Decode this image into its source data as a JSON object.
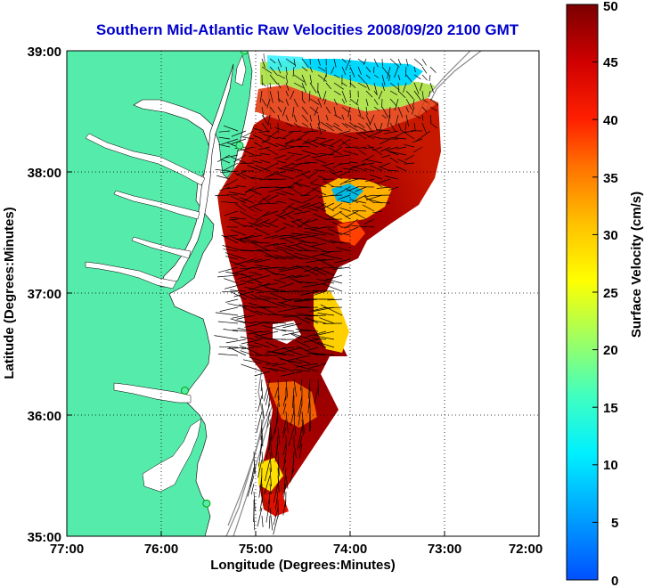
{
  "title": "Southern Mid-Atlantic Raw Velocities 2008/09/20 2100 GMT",
  "xlabel": "Longitude (Degrees:Minutes)",
  "ylabel": "Latitude (Degrees:Minutes)",
  "x_ticks": [
    "77:00",
    "76:00",
    "75:00",
    "74:00",
    "73:00",
    "72:00"
  ],
  "y_ticks": [
    "39:00",
    "38:00",
    "37:00",
    "36:00",
    "35:00"
  ],
  "colorbar": {
    "label": "Surface Velocity (cm/s)",
    "ticks": [
      "50",
      "45",
      "40",
      "35",
      "30",
      "25",
      "20",
      "15",
      "10",
      "5",
      "0"
    ],
    "range": [
      0,
      50
    ]
  },
  "colors": {
    "land": "#55ecab",
    "title": "#0000cc",
    "high": "#800000",
    "low": "#0066ff"
  },
  "map": {
    "lon_range": [
      -77,
      -72
    ],
    "lat_range": [
      35,
      39
    ],
    "stations": [
      {
        "lon": -75.12,
        "lat": 39.0
      },
      {
        "lon": -75.17,
        "lat": 38.22
      },
      {
        "lon": -75.75,
        "lat": 36.2
      },
      {
        "lon": -75.52,
        "lat": 35.27
      }
    ]
  }
}
